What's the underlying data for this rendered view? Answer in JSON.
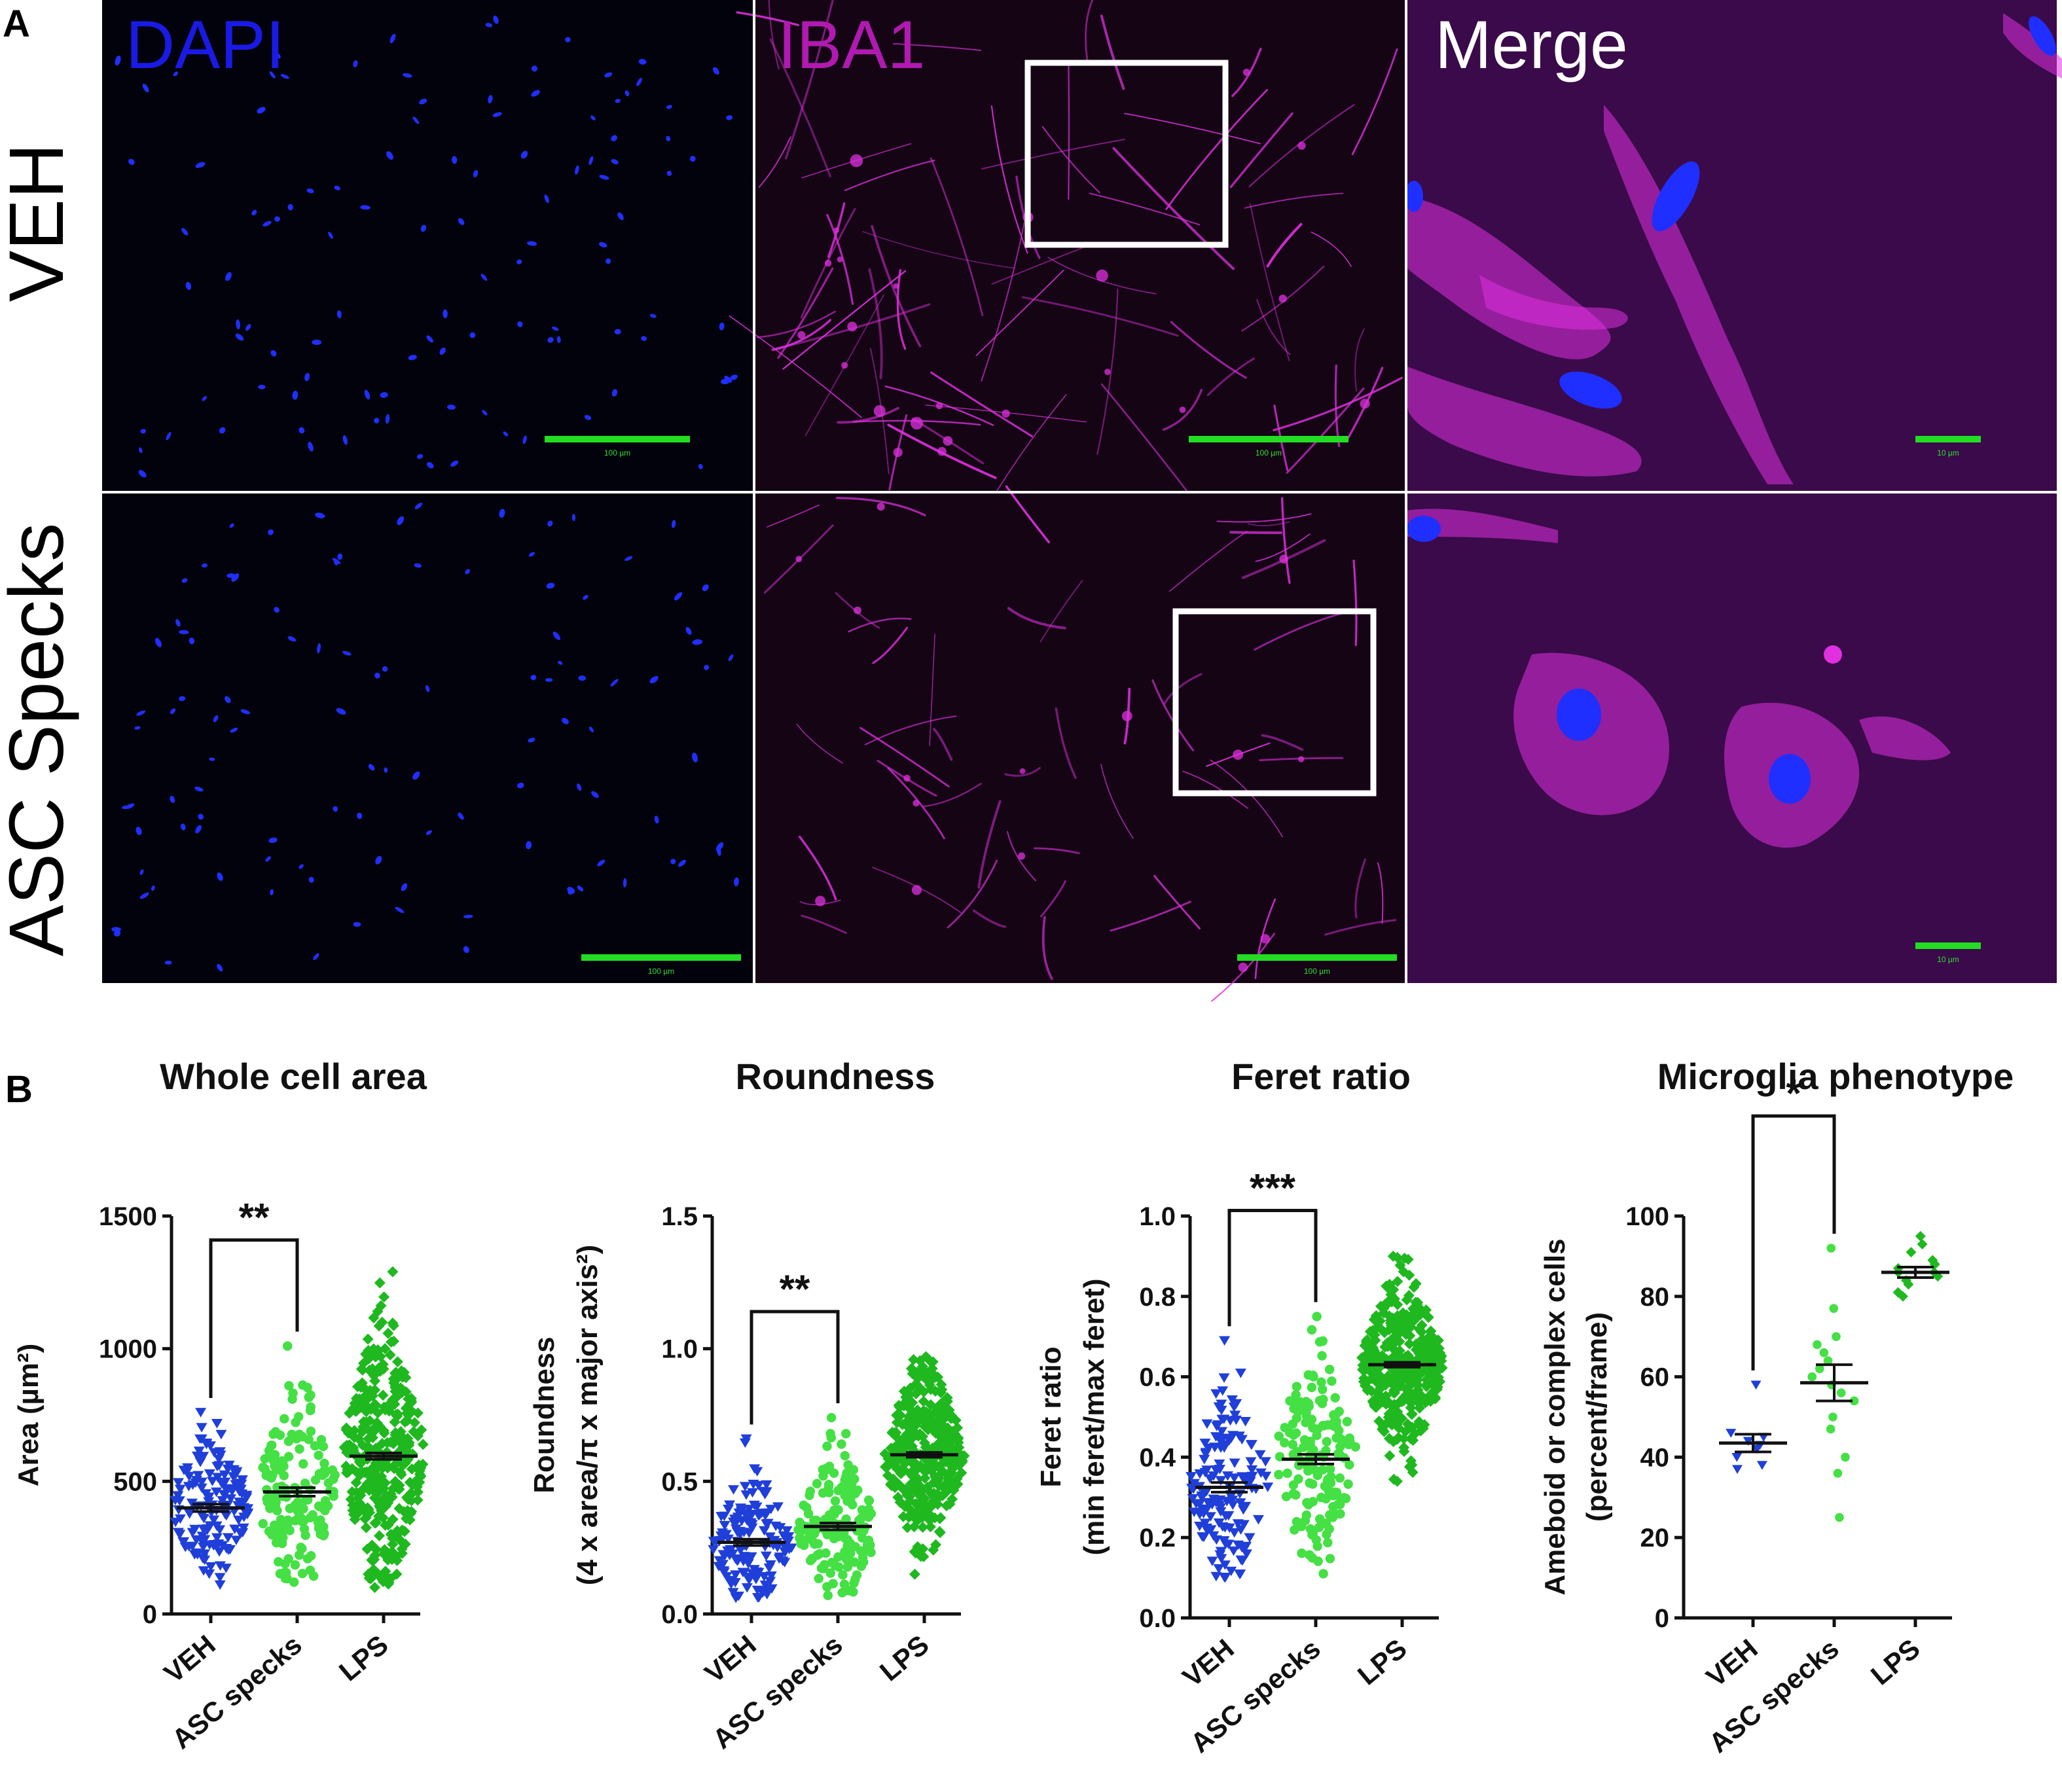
{
  "panel_a": {
    "letter": "A",
    "rows": [
      "VEH",
      "ASC Specks"
    ],
    "channels": [
      {
        "name": "DAPI",
        "color": "#1a1ae6"
      },
      {
        "name": "IBA1",
        "color": "#b01ab0"
      },
      {
        "name": "Merge",
        "color": "#ffffff"
      }
    ],
    "scale_bars": {
      "wide": "100 µm",
      "zoom": "10 µm"
    },
    "colors": {
      "nucleus": "#1f2fff",
      "microglia": "#e030e0",
      "scale_bar": "#22dd22",
      "dapi_bg": "#02020c",
      "iba1_bg": "#140414",
      "merge_bg": "#3a0a4a"
    }
  },
  "panel_b": {
    "letter": "B",
    "colors": {
      "VEH": "#1f3fd8",
      "ASC specks": "#44e044",
      "LPS": "#1fb81f"
    }
  },
  "chart_data": [
    {
      "type": "scatter",
      "title": "Whole cell area",
      "ylabel": "Area (µm²)",
      "categories": [
        "VEH",
        "ASC specks",
        "LPS"
      ],
      "ylim": [
        0,
        1500
      ],
      "yticks": [
        "0",
        "500",
        "1000",
        "1500"
      ],
      "ytick_values": [
        0,
        500,
        1000,
        1500
      ],
      "series": [
        {
          "name": "VEH",
          "marker": "triangle-down",
          "n": 150,
          "mean": 400,
          "sem": 14,
          "min": 110,
          "max": 760
        },
        {
          "name": "ASC specks",
          "marker": "circle",
          "n": 160,
          "mean": 460,
          "sem": 16,
          "min": 120,
          "max": 1010
        },
        {
          "name": "LPS",
          "marker": "diamond",
          "n": 380,
          "mean": 595,
          "sem": 12,
          "min": 100,
          "max": 1290
        }
      ],
      "significance": {
        "groups": [
          "VEH",
          "ASC specks"
        ],
        "label": "**"
      }
    },
    {
      "type": "scatter",
      "title": "Roundness",
      "ylabel": "Roundness",
      "ylabel2": "(4 x area/π x major axis²)",
      "categories": [
        "VEH",
        "ASC specks",
        "LPS"
      ],
      "ylim": [
        0,
        1.5
      ],
      "yticks": [
        "0.0",
        "0.5",
        "1.0",
        "1.5"
      ],
      "ytick_values": [
        0,
        0.5,
        1.0,
        1.5
      ],
      "series": [
        {
          "name": "VEH",
          "marker": "triangle-down",
          "n": 150,
          "mean": 0.27,
          "sem": 0.012,
          "min": 0.06,
          "max": 0.66
        },
        {
          "name": "ASC specks",
          "marker": "circle",
          "n": 160,
          "mean": 0.33,
          "sem": 0.013,
          "min": 0.07,
          "max": 0.74
        },
        {
          "name": "LPS",
          "marker": "diamond",
          "n": 380,
          "mean": 0.6,
          "sem": 0.009,
          "min": 0.15,
          "max": 0.97
        }
      ],
      "significance": {
        "groups": [
          "VEH",
          "ASC specks"
        ],
        "label": "**"
      }
    },
    {
      "type": "scatter",
      "title": "Feret ratio",
      "ylabel": "Feret ratio",
      "ylabel2": "(min feret/max feret)",
      "categories": [
        "VEH",
        "ASC specks",
        "LPS"
      ],
      "ylim": [
        0,
        1.0
      ],
      "yticks": [
        "0.0",
        "0.2",
        "0.4",
        "0.6",
        "0.8",
        "1.0"
      ],
      "ytick_values": [
        0,
        0.2,
        0.4,
        0.6,
        0.8,
        1.0
      ],
      "series": [
        {
          "name": "VEH",
          "marker": "triangle-down",
          "n": 150,
          "mean": 0.325,
          "sem": 0.012,
          "min": 0.1,
          "max": 0.69
        },
        {
          "name": "ASC specks",
          "marker": "circle",
          "n": 160,
          "mean": 0.395,
          "sem": 0.012,
          "min": 0.11,
          "max": 0.75
        },
        {
          "name": "LPS",
          "marker": "diamond",
          "n": 380,
          "mean": 0.63,
          "sem": 0.006,
          "min": 0.34,
          "max": 0.9
        }
      ],
      "significance": {
        "groups": [
          "VEH",
          "ASC specks"
        ],
        "label": "***"
      }
    },
    {
      "type": "scatter",
      "title": "Microglia phenotype",
      "ylabel": "Ameboid or complex cells",
      "ylabel2": "(percent/frame)",
      "categories": [
        "VEH",
        "ASC specks",
        "LPS"
      ],
      "ylim": [
        0,
        100
      ],
      "yticks": [
        "0",
        "20",
        "40",
        "60",
        "80",
        "100"
      ],
      "ytick_values": [
        0,
        20,
        40,
        60,
        80,
        100
      ],
      "series": [
        {
          "name": "VEH",
          "marker": "triangle-down",
          "mean": 43.5,
          "sem": 2.2,
          "points": [
            58,
            46,
            45,
            44,
            43,
            42,
            40,
            38,
            37
          ]
        },
        {
          "name": "ASC specks",
          "marker": "circle",
          "mean": 58.5,
          "sem": 4.5,
          "points": [
            92,
            77,
            70,
            68,
            66,
            64,
            62,
            60,
            58,
            56,
            54,
            50,
            47,
            40,
            36,
            25
          ]
        },
        {
          "name": "LPS",
          "marker": "diamond",
          "mean": 86,
          "sem": 1.3,
          "points": [
            95,
            93,
            91,
            89,
            88,
            87,
            86,
            86,
            85,
            84,
            83,
            81,
            80
          ]
        }
      ],
      "significance": {
        "groups": [
          "VEH",
          "ASC specks"
        ],
        "label": "*"
      }
    }
  ]
}
